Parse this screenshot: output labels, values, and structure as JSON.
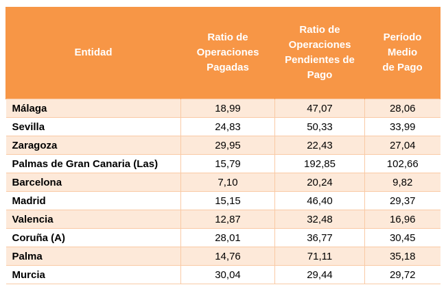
{
  "table": {
    "headers": [
      "Entidad",
      "Ratio de\nOperaciones\nPagadas",
      "Ratio de\nOperaciones\nPendientes de\nPago",
      "Período\nMedio\nde Pago"
    ],
    "rows": [
      [
        "Málaga",
        "18,99",
        "47,07",
        "28,06"
      ],
      [
        "Sevilla",
        "24,83",
        "50,33",
        "33,99"
      ],
      [
        "Zaragoza",
        "29,95",
        "22,43",
        "27,04"
      ],
      [
        "Palmas de Gran Canaria (Las)",
        "15,79",
        "192,85",
        "102,66"
      ],
      [
        "Barcelona",
        "7,10",
        "20,24",
        "9,82"
      ],
      [
        "Madrid",
        "15,15",
        "46,40",
        "29,37"
      ],
      [
        "Valencia",
        "12,87",
        "32,48",
        "16,96"
      ],
      [
        "Coruña (A)",
        "28,01",
        "36,77",
        "30,45"
      ],
      [
        "Palma",
        "14,76",
        "71,11",
        "35,18"
      ],
      [
        "Murcia",
        "30,04",
        "29,44",
        "29,72"
      ]
    ]
  },
  "colors": {
    "header_bg": "#f79646",
    "row_band": "#fde9d9",
    "border": "#f9c9a4"
  }
}
